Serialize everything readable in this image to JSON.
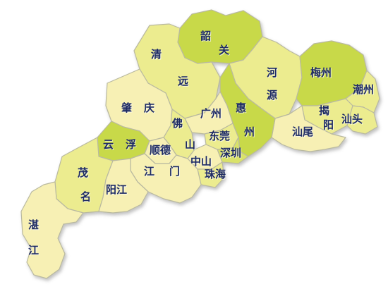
{
  "regions": {
    "shaoguan": {
      "name_a": "韶",
      "name_b": "关"
    },
    "qingyuan": {
      "name_a": "清",
      "name_b": "远"
    },
    "heyuan": {
      "name_a": "河",
      "name_b": "源"
    },
    "meizhou": {
      "name": "梅州"
    },
    "chaozhou": {
      "name": "潮州"
    },
    "jieyang": {
      "name_a": "揭",
      "name_b": "阳"
    },
    "shantou": {
      "name": "汕头"
    },
    "shanwei": {
      "name": "汕尾"
    },
    "huizhou": {
      "name_a": "惠",
      "name_b": "州"
    },
    "zhaoqing": {
      "name_a": "肇",
      "name_b": "庆"
    },
    "guangzhou": {
      "name": "广州"
    },
    "foshan": {
      "name_a": "佛",
      "name_b": "山"
    },
    "dongguan": {
      "name": "东莞"
    },
    "shenzhen": {
      "name": "深圳"
    },
    "yunfu": {
      "name_a": "云",
      "name_b": "浮"
    },
    "shunde": {
      "name": "顺德"
    },
    "zhongshan": {
      "name": "中山"
    },
    "zhuhai": {
      "name": "珠海"
    },
    "jiangmen": {
      "name_a": "江",
      "name_b": "门"
    },
    "maoming": {
      "name_a": "茂",
      "name_b": "名"
    },
    "yangjiang": {
      "name": "阳江"
    },
    "zhanjiang": {
      "name_a": "湛",
      "name_b": "江"
    }
  },
  "colors": {
    "light": "#f7f0b4",
    "medium": "#ecec8f",
    "strong": "#d9e26a",
    "green": "#c8d94a",
    "border": "#b9b9a0"
  }
}
